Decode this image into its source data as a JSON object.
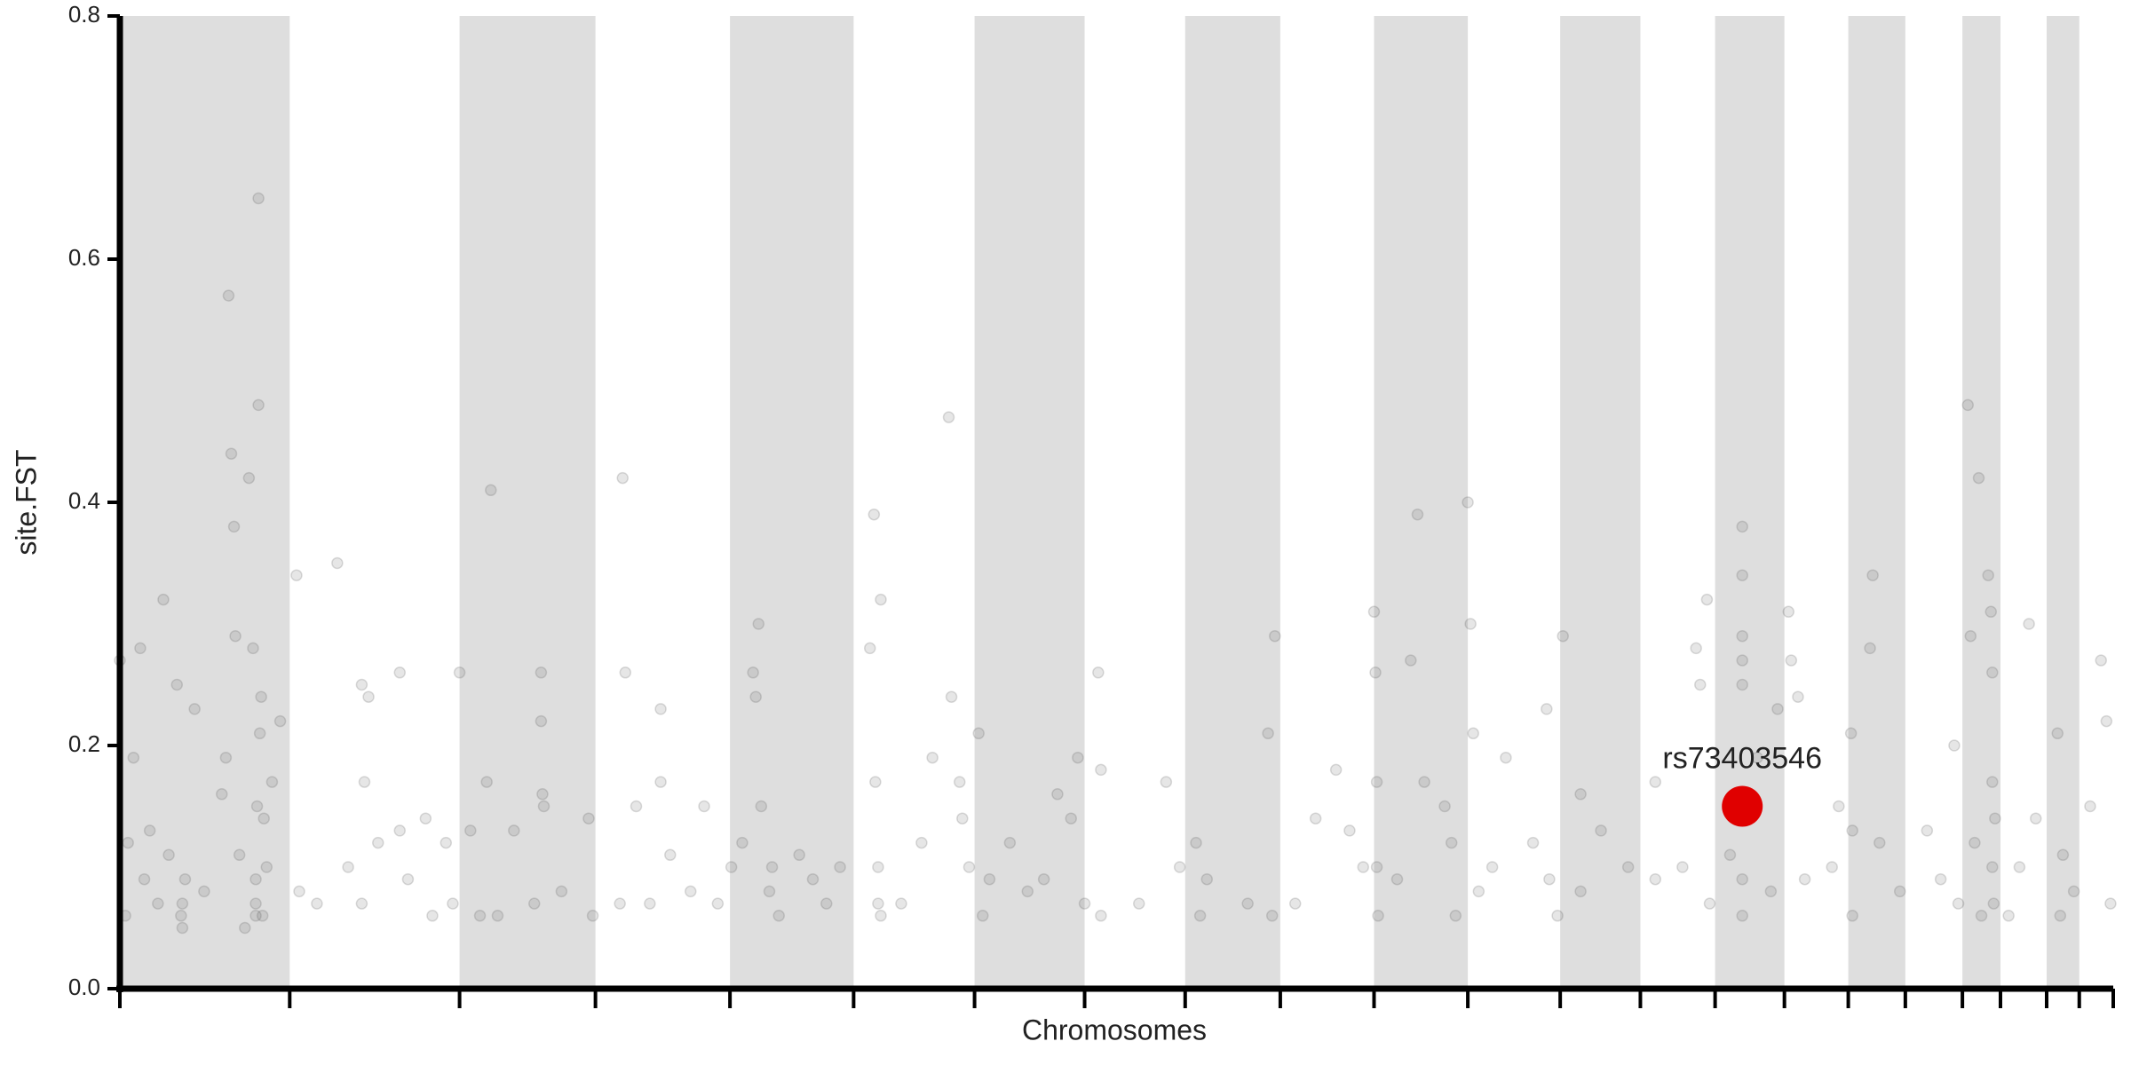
{
  "chart_data": {
    "type": "scatter",
    "y_label": "site.FST",
    "x_label": "Chromosomes",
    "xlim": [
      0,
      1467
    ],
    "xticks": [
      0,
      125,
      250,
      350,
      449,
      540,
      629,
      710,
      784,
      854,
      923,
      992,
      1060,
      1119,
      1174,
      1225,
      1272,
      1314,
      1356,
      1384,
      1418,
      1442,
      1467
    ],
    "ylim": [
      0,
      0.8
    ],
    "yticks": [
      {
        "value": 0,
        "label": "0.0"
      },
      0.2,
      0.4,
      0.6,
      0.8
    ],
    "alternate_bands": true,
    "band_color": "#dedede",
    "series": [
      {
        "color": "#555555",
        "x": [
          0,
          4,
          6,
          10,
          15,
          18,
          22,
          28,
          32,
          36,
          42,
          45,
          48,
          55,
          62,
          75,
          78,
          80,
          82,
          84,
          85,
          88,
          92,
          95,
          98,
          100,
          102,
          102,
          104,
          105,
          106,
          108,
          112,
          118,
          46,
          46,
          100,
          100,
          101,
          103,
          130,
          132,
          145,
          160,
          168,
          178,
          178,
          180,
          183,
          190,
          206,
          206,
          212,
          225,
          230,
          240,
          245,
          250,
          258,
          265,
          270,
          273,
          278,
          290,
          305,
          310,
          310,
          311,
          312,
          325,
          345,
          348,
          368,
          370,
          372,
          380,
          390,
          398,
          398,
          405,
          420,
          430,
          440,
          450,
          458,
          466,
          468,
          470,
          472,
          478,
          480,
          485,
          500,
          510,
          520,
          530,
          552,
          555,
          556,
          558,
          558,
          560,
          560,
          575,
          590,
          598,
          610,
          612,
          618,
          620,
          625,
          632,
          635,
          640,
          655,
          668,
          680,
          690,
          700,
          705,
          710,
          720,
          722,
          722,
          750,
          770,
          780,
          792,
          795,
          800,
          830,
          845,
          850,
          848,
          865,
          880,
          895,
          905,
          915,
          923,
          924,
          925,
          926,
          925,
          940,
          950,
          955,
          960,
          975,
          980,
          983,
          992,
          994,
          996,
          1000,
          1010,
          1020,
          1040,
          1050,
          1052,
          1058,
          1062,
          1075,
          1075,
          1090,
          1110,
          1130,
          1130,
          1150,
          1160,
          1163,
          1168,
          1170,
          1194,
          1194,
          1194,
          1194,
          1194,
          1194,
          1194,
          1185,
          1205,
          1215,
          1220,
          1228,
          1230,
          1235,
          1240,
          1260,
          1265,
          1274,
          1275,
          1275,
          1288,
          1290,
          1295,
          1310,
          1330,
          1340,
          1350,
          1353,
          1360,
          1362,
          1365,
          1368,
          1370,
          1375,
          1377,
          1378,
          1378,
          1378,
          1379,
          1380,
          1390,
          1398,
          1405,
          1410,
          1426,
          1428,
          1430,
          1438,
          1450,
          1458,
          1462,
          1465
        ],
        "values": [
          0.27,
          0.06,
          0.12,
          0.19,
          0.28,
          0.09,
          0.13,
          0.07,
          0.32,
          0.11,
          0.25,
          0.06,
          0.09,
          0.23,
          0.08,
          0.16,
          0.19,
          0.57,
          0.44,
          0.38,
          0.29,
          0.11,
          0.05,
          0.42,
          0.28,
          0.07,
          0.48,
          0.65,
          0.24,
          0.06,
          0.14,
          0.1,
          0.17,
          0.22,
          0.07,
          0.05,
          0.06,
          0.09,
          0.15,
          0.21,
          0.34,
          0.08,
          0.07,
          0.35,
          0.1,
          0.25,
          0.07,
          0.17,
          0.24,
          0.12,
          0.26,
          0.13,
          0.09,
          0.14,
          0.06,
          0.12,
          0.07,
          0.26,
          0.13,
          0.06,
          0.17,
          0.41,
          0.06,
          0.13,
          0.07,
          0.26,
          0.22,
          0.16,
          0.15,
          0.08,
          0.14,
          0.06,
          0.07,
          0.42,
          0.26,
          0.15,
          0.07,
          0.23,
          0.17,
          0.11,
          0.08,
          0.15,
          0.07,
          0.1,
          0.12,
          0.26,
          0.24,
          0.3,
          0.15,
          0.08,
          0.1,
          0.06,
          0.11,
          0.09,
          0.07,
          0.1,
          0.28,
          0.39,
          0.17,
          0.1,
          0.07,
          0.32,
          0.06,
          0.07,
          0.12,
          0.19,
          0.47,
          0.24,
          0.17,
          0.14,
          0.1,
          0.21,
          0.06,
          0.09,
          0.12,
          0.08,
          0.09,
          0.16,
          0.14,
          0.19,
          0.07,
          0.26,
          0.18,
          0.06,
          0.07,
          0.17,
          0.1,
          0.12,
          0.06,
          0.09,
          0.07,
          0.21,
          0.29,
          0.06,
          0.07,
          0.14,
          0.18,
          0.13,
          0.1,
          0.31,
          0.26,
          0.17,
          0.06,
          0.1,
          0.09,
          0.27,
          0.39,
          0.17,
          0.15,
          0.12,
          0.06,
          0.4,
          0.3,
          0.21,
          0.08,
          0.1,
          0.19,
          0.12,
          0.23,
          0.09,
          0.06,
          0.29,
          0.16,
          0.08,
          0.13,
          0.1,
          0.17,
          0.09,
          0.1,
          0.28,
          0.25,
          0.32,
          0.07,
          0.38,
          0.34,
          0.29,
          0.27,
          0.25,
          0.09,
          0.06,
          0.11,
          0.19,
          0.08,
          0.23,
          0.31,
          0.27,
          0.24,
          0.09,
          0.1,
          0.15,
          0.21,
          0.13,
          0.06,
          0.28,
          0.34,
          0.12,
          0.08,
          0.13,
          0.09,
          0.2,
          0.07,
          0.48,
          0.29,
          0.12,
          0.42,
          0.06,
          0.34,
          0.31,
          0.26,
          0.17,
          0.1,
          0.07,
          0.14,
          0.06,
          0.1,
          0.3,
          0.14,
          0.21,
          0.06,
          0.11,
          0.08,
          0.15,
          0.27,
          0.22,
          0.07
        ]
      }
    ],
    "highlight": {
      "label": "rs73403546",
      "x": 1194,
      "y": 0.15,
      "color": "#e00000"
    }
  }
}
